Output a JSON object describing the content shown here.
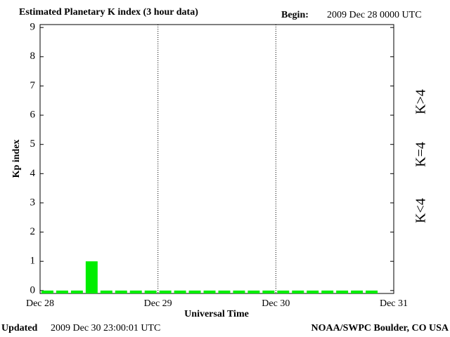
{
  "chart_data": {
    "type": "bar",
    "title": "Estimated Planetary K index (3 hour data)",
    "begin_label": "Begin:",
    "begin_value": "2009 Dec 28 0000 UTC",
    "ylabel": "Kp index",
    "xlabel": "Universal Time",
    "updated_label": "Updated",
    "updated_value": "2009 Dec 30 23:00:01 UTC",
    "source": "NOAA/SWPC Boulder, CO USA",
    "values": [
      0,
      0,
      0,
      1,
      0,
      0,
      0,
      0,
      0,
      0,
      0,
      0,
      0,
      0,
      0,
      0,
      0,
      0,
      0,
      0,
      0,
      0,
      0,
      null
    ],
    "xlim": [
      0,
      3
    ],
    "xticks": [
      {
        "value": 0,
        "label": "Dec 28"
      },
      {
        "value": 1,
        "label": "Dec 29"
      },
      {
        "value": 2,
        "label": "Dec 30"
      },
      {
        "value": 3,
        "label": "Dec 31"
      }
    ],
    "ylim": [
      -0.1,
      9.1
    ],
    "yticks": [
      0,
      1,
      2,
      3,
      4,
      5,
      6,
      7,
      8,
      9
    ],
    "grid": true,
    "legend": [
      {
        "label": "K<4",
        "color": "#00ee00"
      },
      {
        "label": "K=4",
        "color": "#ffcc00"
      },
      {
        "label": "K>4",
        "color": "#ff3300"
      }
    ]
  }
}
